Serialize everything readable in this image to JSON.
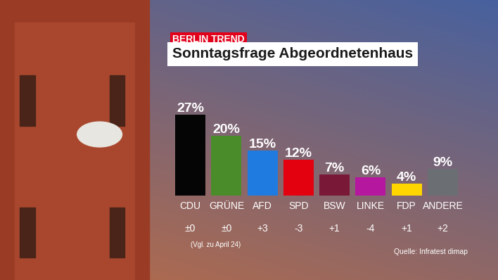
{
  "header": "BERLIN TREND",
  "chart_data": {
    "type": "bar",
    "title": "Sonntagsfrage Abgeordnetenhaus",
    "categories": [
      "CDU",
      "GRÜNE",
      "AFD",
      "SPD",
      "BSW",
      "LINKE",
      "FDP",
      "ANDERE"
    ],
    "values": [
      27,
      20,
      15,
      12,
      7,
      6,
      4,
      9
    ],
    "value_labels": [
      "27%",
      "20%",
      "15%",
      "12%",
      "7%",
      "6%",
      "4%",
      "9%"
    ],
    "colors": [
      "#050505",
      "#4a8c2a",
      "#1f7be0",
      "#e3000f",
      "#7a1838",
      "#b5179e",
      "#ffd600",
      "#6b6f73"
    ],
    "changes": [
      "±0",
      "±0",
      "+3",
      "-3",
      "+1",
      "-4",
      "+1",
      "+2"
    ],
    "change_note": "(Vgl. zu April 24)",
    "source": "Quelle: Infratest dimap",
    "ylim": [
      0,
      27
    ],
    "data_labels": true,
    "tick_labels": "x",
    "grid": false
  }
}
